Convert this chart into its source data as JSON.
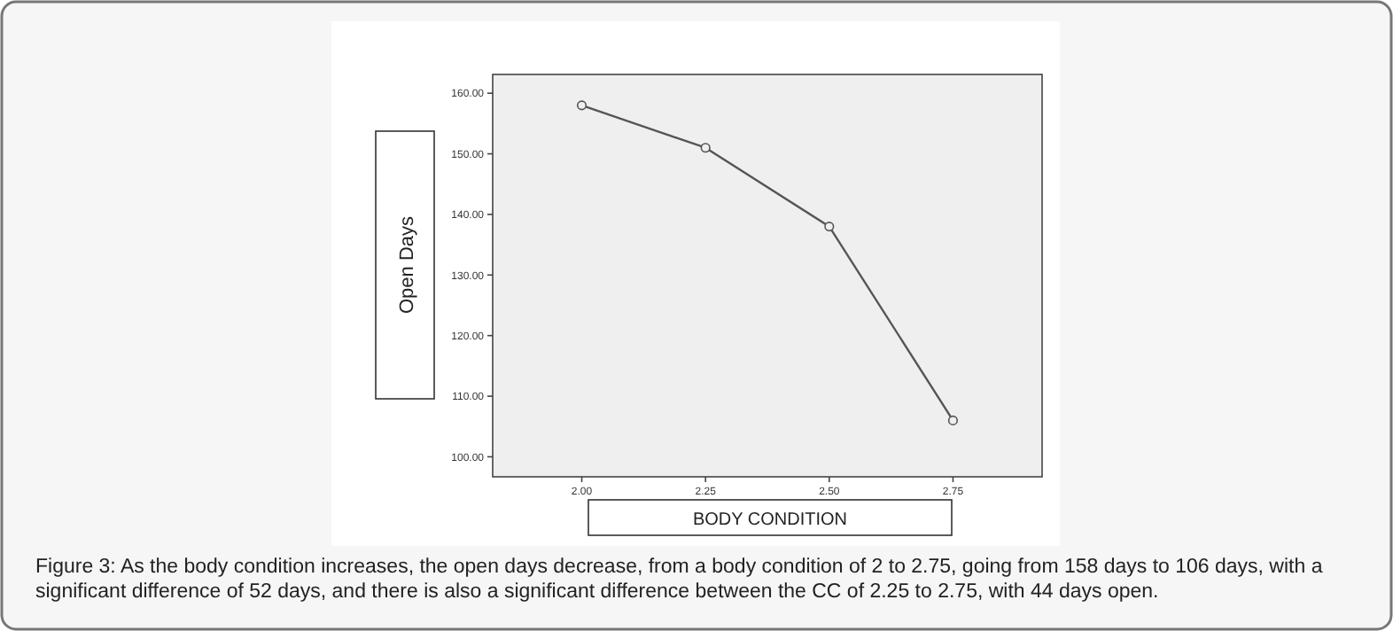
{
  "chart_data": {
    "type": "line",
    "xlabel": "BODY CONDITION",
    "ylabel": "Open Days",
    "x": [
      2.0,
      2.25,
      2.5,
      2.75
    ],
    "series": [
      {
        "color": "#555555",
        "values": [
          158,
          151,
          138,
          106
        ]
      }
    ],
    "xlim": [
      1.82,
      2.93
    ],
    "xticks": [
      {
        "value": 2,
        "label": "2.00"
      },
      {
        "value": 2.25,
        "label": "2.25"
      },
      {
        "value": 2.5,
        "label": "2.50"
      },
      {
        "value": 2.75,
        "label": "2.75"
      }
    ],
    "ylim": [
      96.7,
      163.1
    ],
    "yticks": [
      {
        "value": 100,
        "label": "100.00"
      },
      {
        "value": 110,
        "label": "110.00"
      },
      {
        "value": 120,
        "label": "120.00"
      },
      {
        "value": 130,
        "label": "130.00"
      },
      {
        "value": 140,
        "label": "140.00"
      },
      {
        "value": 150,
        "label": "150.00"
      },
      {
        "value": 160,
        "label": "160.00"
      }
    ],
    "marker": "circle",
    "grid": false,
    "annotations": [
      "Figure 3: As the body condition increases, the open days decrease, from a body condition of 2 to 2.75, going from 158 days to 106 days, with a significant difference of 52 days, and there is also a significant difference between the CC of 2.25 to 2.75, with 44 days open."
    ]
  }
}
